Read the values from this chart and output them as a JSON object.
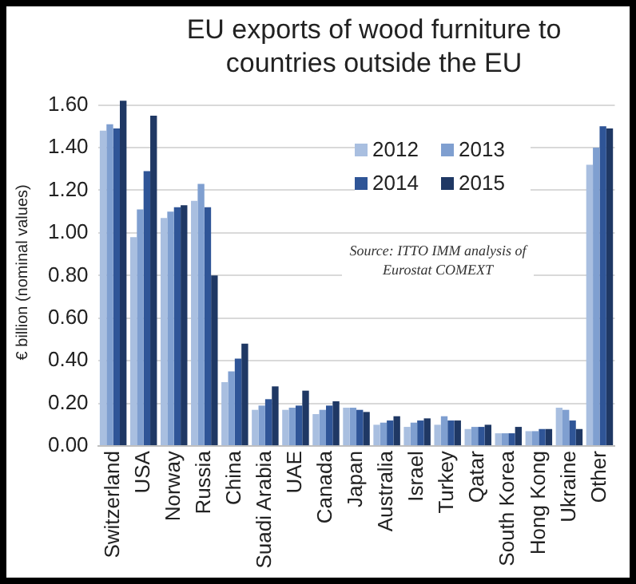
{
  "chart_data": {
    "type": "bar",
    "title": "EU exports of wood furniture to countries outside the EU",
    "ylabel": "€ billion (nominal values)",
    "categories": [
      "Switzerland",
      "USA",
      "Norway",
      "Russia",
      "China",
      "Suadi Arabia",
      "UAE",
      "Canada",
      "Japan",
      "Australia",
      "Israel",
      "Turkey",
      "Qatar",
      "South Korea",
      "Hong Kong",
      "Ukraine",
      "Other"
    ],
    "series": [
      {
        "name": "2012",
        "color": "#a9bfe0",
        "values": [
          1.48,
          0.98,
          1.07,
          1.15,
          0.3,
          0.17,
          0.17,
          0.15,
          0.18,
          0.1,
          0.09,
          0.1,
          0.08,
          0.06,
          0.07,
          0.18,
          1.32
        ]
      },
      {
        "name": "2013",
        "color": "#7f9fd0",
        "values": [
          1.51,
          1.11,
          1.1,
          1.23,
          0.35,
          0.19,
          0.18,
          0.17,
          0.18,
          0.11,
          0.11,
          0.14,
          0.09,
          0.06,
          0.07,
          0.17,
          1.4
        ]
      },
      {
        "name": "2014",
        "color": "#2f5597",
        "values": [
          1.49,
          1.29,
          1.12,
          1.12,
          0.41,
          0.22,
          0.19,
          0.19,
          0.17,
          0.12,
          0.12,
          0.12,
          0.09,
          0.06,
          0.08,
          0.12,
          1.5
        ]
      },
      {
        "name": "2015",
        "color": "#1f3864",
        "values": [
          1.62,
          1.55,
          1.13,
          0.8,
          0.48,
          0.28,
          0.26,
          0.21,
          0.16,
          0.14,
          0.13,
          0.12,
          0.1,
          0.09,
          0.08,
          0.08,
          1.49
        ]
      }
    ],
    "ylim": [
      0,
      1.63
    ],
    "yticks": [
      {
        "value": 0,
        "label": "0.00"
      },
      {
        "value": 0.2,
        "label": "0.20"
      },
      {
        "value": 0.4,
        "label": "0.40"
      },
      {
        "value": 0.6,
        "label": "0.60"
      },
      {
        "value": 0.8,
        "label": "0.80"
      },
      {
        "value": 1,
        "label": "1.00"
      },
      {
        "value": 1.2,
        "label": "1.20"
      },
      {
        "value": 1.4,
        "label": "1.40"
      },
      {
        "value": 1.6,
        "label": "1.60"
      }
    ],
    "grid": "y",
    "legend": "top right",
    "annotations": [
      "Source: ITTO IMM analysis of Eurostat COMEXT"
    ]
  }
}
